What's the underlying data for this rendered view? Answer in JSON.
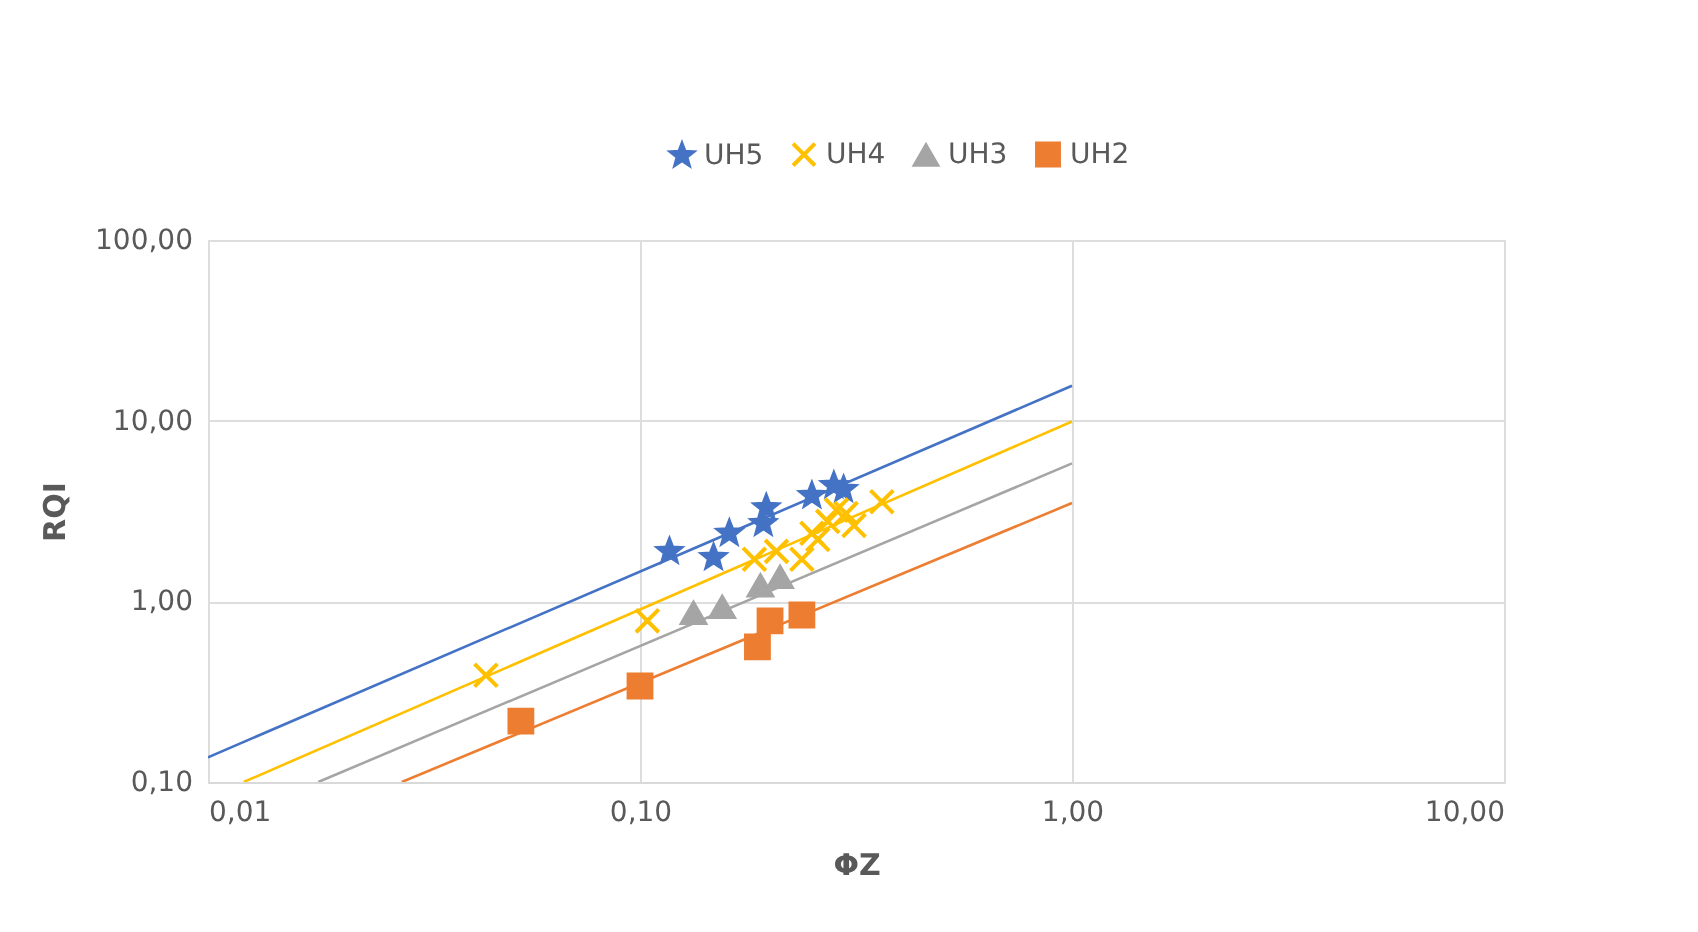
{
  "chart_data": {
    "type": "scatter",
    "xlabel": "ΦZ",
    "ylabel": "RQI",
    "log": "xy",
    "grid": true,
    "legend": "top",
    "xlim": [
      0.01,
      10
    ],
    "ylim": [
      0.1,
      100
    ],
    "xticks": [
      {
        "value": 0.01,
        "label": "0,01"
      },
      {
        "value": 0.1,
        "label": "0,10"
      },
      {
        "value": 1,
        "label": "1,00"
      },
      {
        "value": 10,
        "label": "10,00"
      }
    ],
    "yticks": [
      {
        "value": 0.1,
        "label": "0,10"
      },
      {
        "value": 1,
        "label": "1,00"
      },
      {
        "value": 10,
        "label": "10,00"
      },
      {
        "value": 100,
        "label": "100,00"
      }
    ],
    "series": [
      {
        "name": "UH5",
        "color": "#4472c4",
        "marker": "star",
        "x": [
          0.117,
          0.148,
          0.161,
          0.196,
          0.193,
          0.25,
          0.281,
          0.296
        ],
        "values": [
          1.89,
          1.75,
          2.38,
          3.3,
          2.7,
          3.85,
          4.38,
          4.16
        ]
      },
      {
        "name": "UH4",
        "color": "#ffc000",
        "marker": "cross",
        "x": [
          0.044,
          0.104,
          0.184,
          0.207,
          0.237,
          0.272,
          0.3,
          0.25,
          0.363,
          0.313,
          0.258,
          0.285
        ],
        "values": [
          0.39,
          0.78,
          1.71,
          1.89,
          1.71,
          2.77,
          3.06,
          2.38,
          3.56,
          2.63,
          2.2,
          3.2
        ]
      },
      {
        "name": "UH3",
        "color": "#a5a5a5",
        "marker": "triangle",
        "x": [
          0.133,
          0.155,
          0.19,
          0.211
        ],
        "values": [
          0.86,
          0.93,
          1.22,
          1.36
        ]
      },
      {
        "name": "UH2",
        "color": "#ed7d31",
        "marker": "square",
        "x": [
          0.053,
          0.1,
          0.187,
          0.2,
          0.237
        ],
        "values": [
          0.217,
          0.34,
          0.56,
          0.78,
          0.84
        ]
      },
      {
        "type": "line",
        "color": "#4472c4",
        "x": [
          0.01,
          1
        ],
        "values": [
          0.137,
          15.6
        ]
      },
      {
        "type": "line",
        "color": "#ffc000",
        "x": [
          0.0121,
          1
        ],
        "values": [
          0.1,
          9.9
        ]
      },
      {
        "type": "line",
        "color": "#a5a5a5",
        "x": [
          0.018,
          1
        ],
        "values": [
          0.1,
          5.8
        ]
      },
      {
        "type": "line",
        "color": "#ed7d31",
        "x": [
          0.0281,
          1
        ],
        "values": [
          0.1,
          3.5
        ]
      }
    ]
  }
}
